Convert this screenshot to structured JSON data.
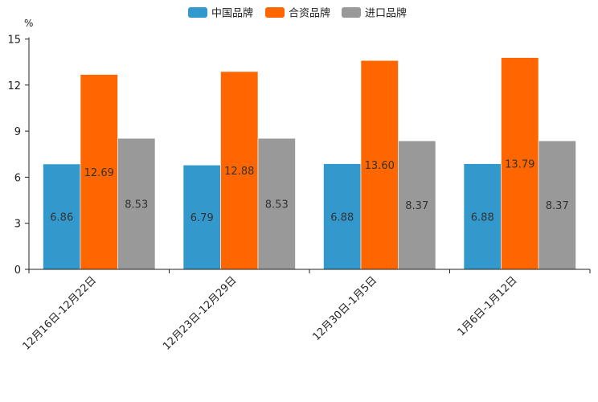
{
  "chart_data": {
    "type": "bar",
    "title": "",
    "ylabel": "%",
    "xlabel": "",
    "ylim": [
      0,
      15
    ],
    "yticks": [
      0,
      3,
      6,
      9,
      12,
      15
    ],
    "grid": false,
    "legend_position": "top-center",
    "categories": [
      "12月16日-12月22日",
      "12月23日-12月29日",
      "12月30日-1月5日",
      "1月6日-1月12日"
    ],
    "series": [
      {
        "name": "中国品牌",
        "color": "#3399cc",
        "values": [
          6.86,
          6.79,
          6.88,
          6.88
        ],
        "labels": [
          "6.86",
          "6.79",
          "6.88",
          "6.88"
        ]
      },
      {
        "name": "合资品牌",
        "color": "#ff6600",
        "values": [
          12.69,
          12.88,
          13.6,
          13.79
        ],
        "labels": [
          "12.69",
          "12.88",
          "13.60",
          "13.79"
        ]
      },
      {
        "name": "进口品牌",
        "color": "#999999",
        "values": [
          8.53,
          8.53,
          8.37,
          8.37
        ],
        "labels": [
          "8.53",
          "8.53",
          "8.37",
          "8.37"
        ]
      }
    ]
  }
}
